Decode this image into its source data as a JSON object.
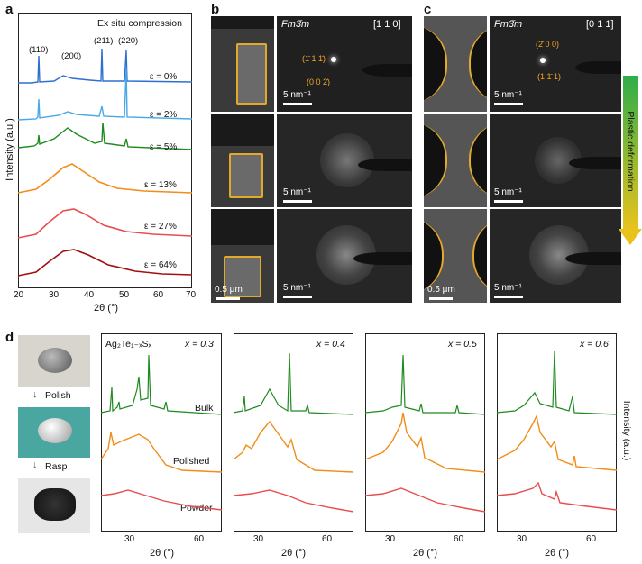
{
  "panel_a": {
    "label": "a",
    "title": "Ex situ compression",
    "ylabel": "Intensity (a.u.)",
    "xlabel": "2θ (°)",
    "x_ticks": [
      "20",
      "30",
      "40",
      "50",
      "60",
      "70"
    ],
    "peaks": [
      "(110)",
      "(200)",
      "(211)",
      "(220)"
    ],
    "strains": [
      "ε = 0%",
      "ε = 2%",
      "ε = 5%",
      "ε = 13%",
      "ε = 27%",
      "ε = 64%"
    ],
    "colors": [
      "#2f6fd0",
      "#4aa8e6",
      "#1f8a1f",
      "#f28c1a",
      "#e84d4d",
      "#a10f0f"
    ]
  },
  "panel_b": {
    "label": "b",
    "space_group": "Fm3̄m",
    "zone_axis": "[1 1 0]",
    "spot_labels": [
      "(1̄ 1 1̄)",
      "(0 0 2̄)"
    ],
    "diff_scale": "5 nm⁻¹",
    "real_scale": "0.5 μm"
  },
  "panel_c": {
    "label": "c",
    "space_group": "Fm3̄m",
    "zone_axis": "[0 1 1]",
    "spot_labels": [
      "(2̄ 0 0)",
      "(1 1̄ 1)"
    ],
    "diff_scale": "5 nm⁻¹",
    "real_scale": "0.5 μm",
    "arrow_label": "Plastic deformation"
  },
  "panel_d": {
    "label": "d",
    "steps": [
      "Polish",
      "Rasp"
    ],
    "formula": "Ag₂Te₁₋ₓSₓ",
    "x_values": [
      "x = 0.3",
      "x = 0.4",
      "x = 0.5",
      "x = 0.6"
    ],
    "rows": [
      "Bulk",
      "Polished",
      "Powder"
    ],
    "xlabel": "2θ (°)",
    "ylabel": "Intensity (a.u.)",
    "ticks_sets": [
      [
        "30",
        "60"
      ],
      [
        "30",
        "60"
      ],
      [
        "30",
        "60"
      ],
      [
        "30",
        "60"
      ]
    ],
    "colors": [
      "#1f8a1f",
      "#f28c1a",
      "#e84d4d"
    ]
  }
}
